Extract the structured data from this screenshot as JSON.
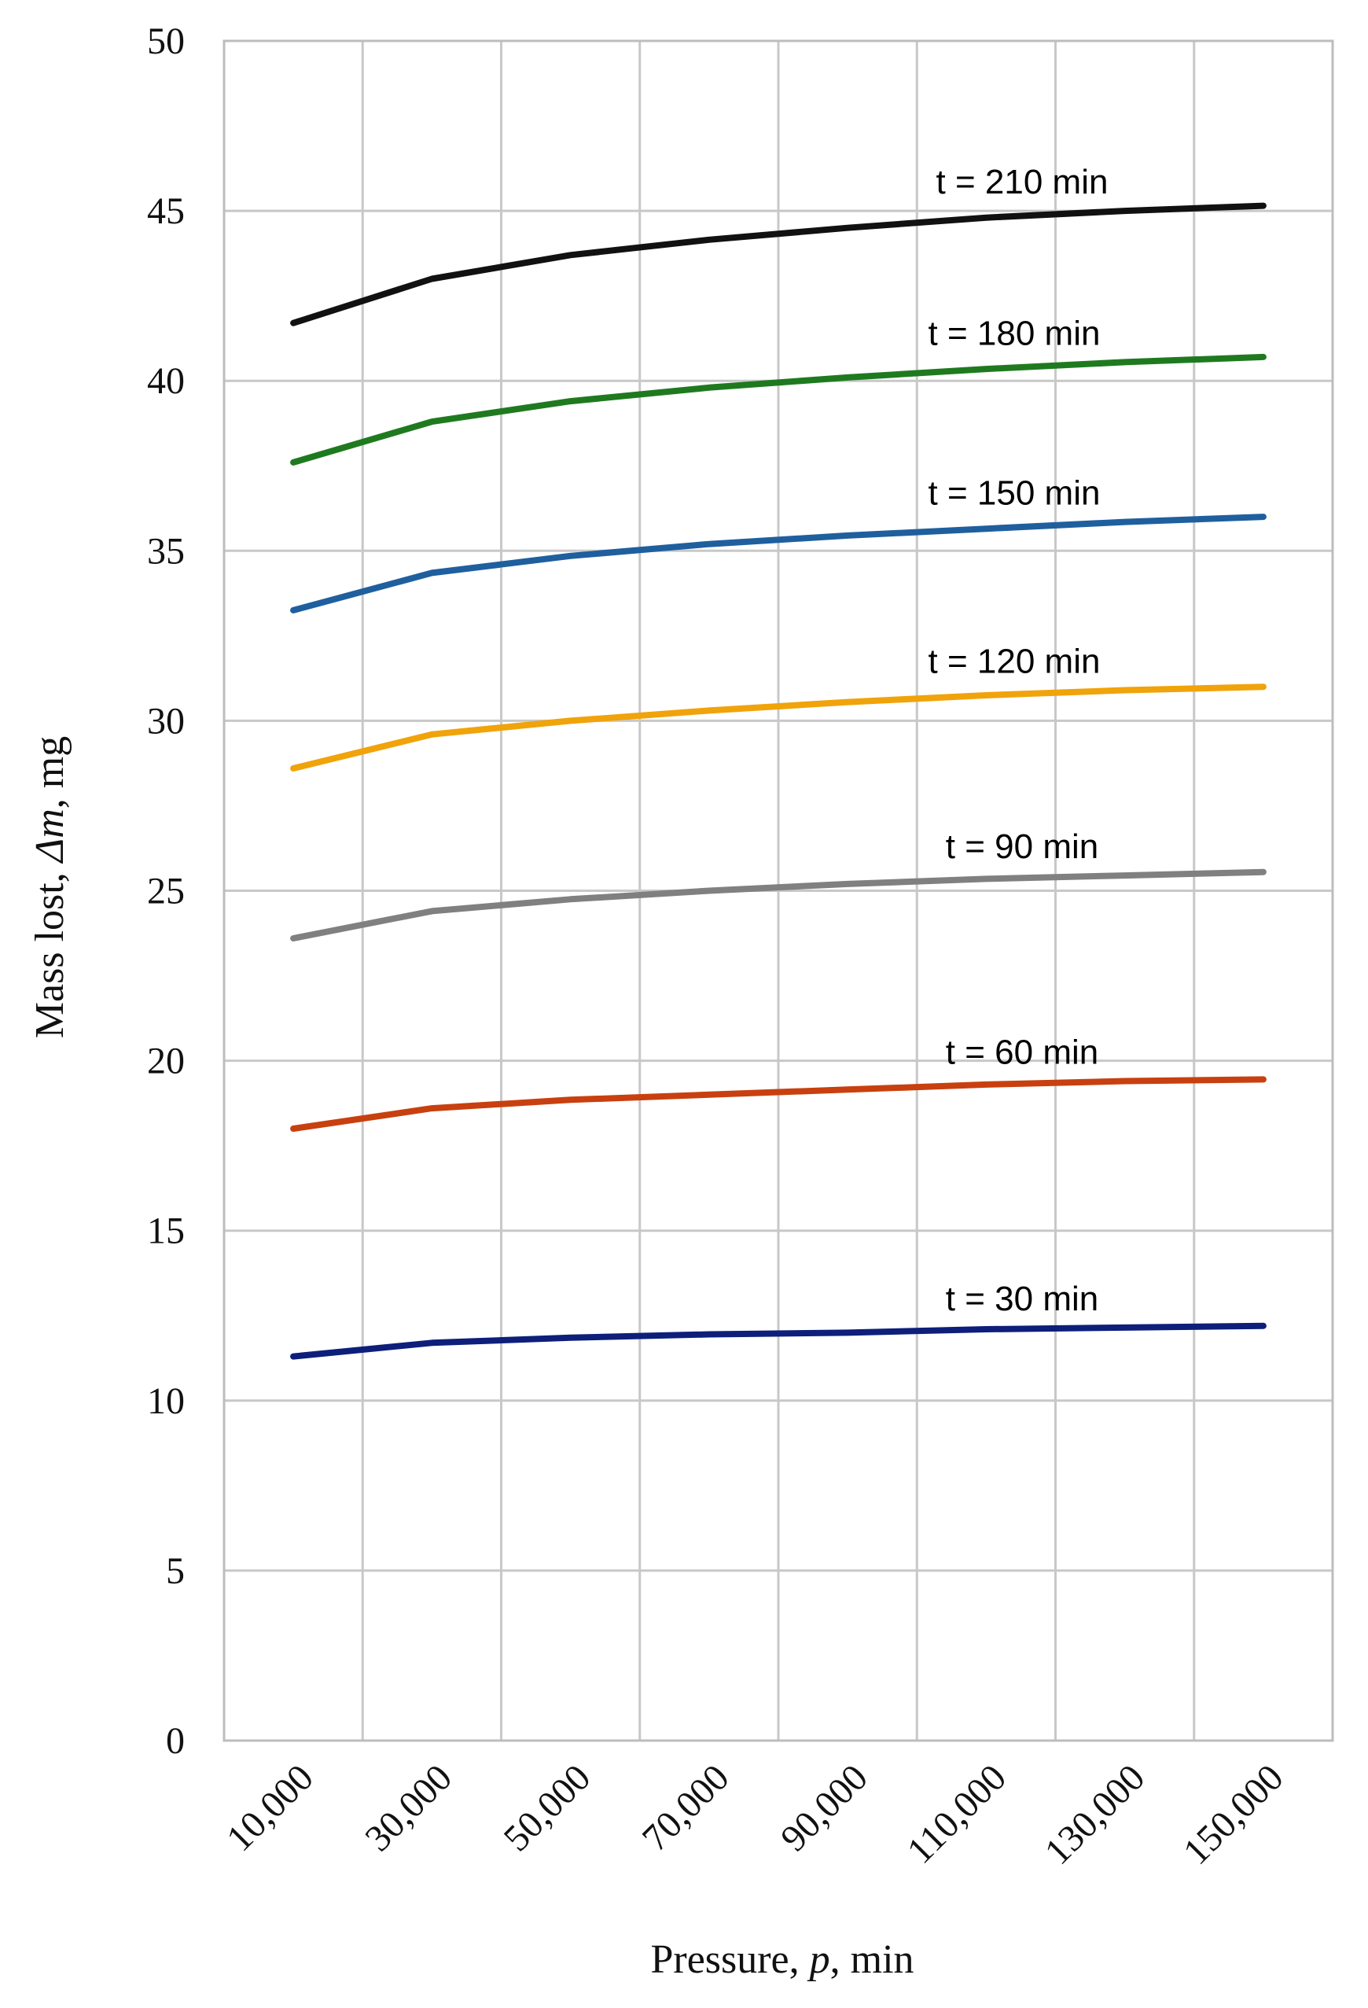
{
  "chart_data": {
    "type": "line",
    "title": "",
    "xlabel_prefix": "Pressure, ",
    "xlabel_symbol": "p",
    "xlabel_suffix": ", min",
    "ylabel_prefix": "Mass lost, ",
    "ylabel_symbol": "Δm",
    "ylabel_suffix": ", mg",
    "xlim": [
      0,
      160000
    ],
    "ylim": [
      0,
      50
    ],
    "grid": true,
    "x_ticks": [
      {
        "value": 10000,
        "label": "10,000"
      },
      {
        "value": 30000,
        "label": "30,000"
      },
      {
        "value": 50000,
        "label": "50,000"
      },
      {
        "value": 70000,
        "label": "70,000"
      },
      {
        "value": 90000,
        "label": "90,000"
      },
      {
        "value": 110000,
        "label": "110,000"
      },
      {
        "value": 130000,
        "label": "130,000"
      },
      {
        "value": 150000,
        "label": "150,000"
      }
    ],
    "y_ticks": [
      {
        "value": 0,
        "label": "0"
      },
      {
        "value": 5,
        "label": "5"
      },
      {
        "value": 10,
        "label": "10"
      },
      {
        "value": 15,
        "label": "15"
      },
      {
        "value": 20,
        "label": "20"
      },
      {
        "value": 25,
        "label": "25"
      },
      {
        "value": 30,
        "label": "30"
      },
      {
        "value": 35,
        "label": "35"
      },
      {
        "value": 40,
        "label": "40"
      },
      {
        "value": 45,
        "label": "45"
      },
      {
        "value": 50,
        "label": "50"
      }
    ],
    "x": [
      10000,
      30000,
      50000,
      70000,
      90000,
      110000,
      130000,
      150000
    ],
    "series": [
      {
        "name": "t = 30 min",
        "color": "#0d1f7a",
        "values": [
          11.3,
          11.7,
          11.85,
          11.95,
          12.0,
          12.1,
          12.15,
          12.2
        ]
      },
      {
        "name": "t = 60 min",
        "color": "#c8400f",
        "values": [
          18.0,
          18.6,
          18.85,
          19.0,
          19.15,
          19.3,
          19.4,
          19.45
        ]
      },
      {
        "name": "t = 90 min",
        "color": "#808080",
        "values": [
          23.6,
          24.4,
          24.75,
          25.0,
          25.2,
          25.35,
          25.45,
          25.55
        ]
      },
      {
        "name": "t = 120 min",
        "color": "#f0a30a",
        "values": [
          28.6,
          29.6,
          30.0,
          30.3,
          30.55,
          30.75,
          30.9,
          31.0
        ]
      },
      {
        "name": "t = 150 min",
        "color": "#1f5f9e",
        "values": [
          33.25,
          34.35,
          34.85,
          35.2,
          35.45,
          35.65,
          35.85,
          36.0
        ]
      },
      {
        "name": "t = 180 min",
        "color": "#1f7a1f",
        "values": [
          37.6,
          38.8,
          39.4,
          39.8,
          40.1,
          40.35,
          40.55,
          40.7
        ]
      },
      {
        "name": "t = 210 min",
        "color": "#111111",
        "values": [
          41.7,
          43.0,
          43.7,
          44.15,
          44.5,
          44.8,
          45.0,
          45.15
        ]
      }
    ]
  }
}
